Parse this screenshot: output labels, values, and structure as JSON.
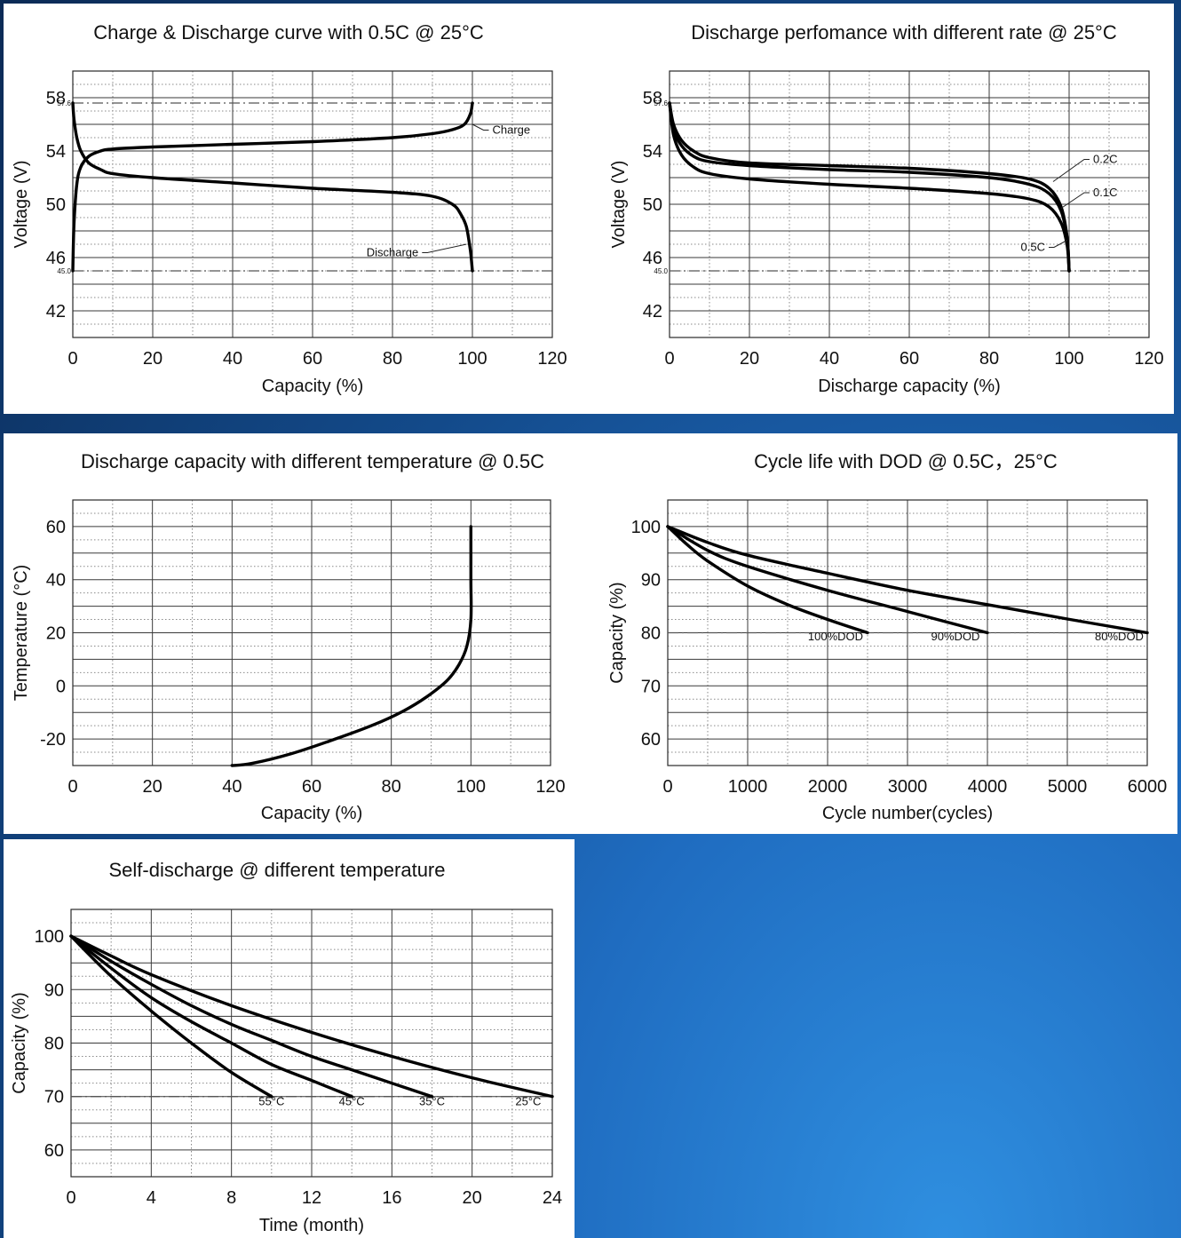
{
  "chart_data": [
    {
      "type": "line",
      "title": "Charge & Discharge curve with 0.5C @ 25°C",
      "xlabel": "Capacity (%)",
      "ylabel": "Voltage (V)",
      "xlim": [
        0,
        120
      ],
      "ylim": [
        40,
        60
      ],
      "xticks": [
        "0",
        "20",
        "40",
        "60",
        "80",
        "100",
        "120"
      ],
      "yticks": [
        "58",
        "54",
        "50",
        "46",
        "42"
      ],
      "grid": true,
      "reference_lines": [
        {
          "y": 57.6,
          "label": "57.6"
        },
        {
          "y": 45.0,
          "label": "45.0"
        }
      ],
      "series": [
        {
          "name": "Charge",
          "x": [
            0,
            0.3,
            1,
            2,
            4,
            7,
            10,
            20,
            40,
            60,
            80,
            90,
            95,
            98,
            99.5,
            100
          ],
          "y": [
            45.0,
            48.5,
            51.5,
            52.8,
            53.6,
            54.0,
            54.15,
            54.3,
            54.5,
            54.7,
            55.0,
            55.3,
            55.6,
            56.0,
            56.8,
            57.6
          ]
        },
        {
          "name": "Discharge",
          "x": [
            0,
            0.3,
            1,
            2,
            4,
            7,
            10,
            20,
            40,
            60,
            80,
            90,
            95,
            97,
            98.5,
            99.5,
            100
          ],
          "y": [
            57.6,
            56.4,
            55.0,
            54.0,
            53.1,
            52.6,
            52.3,
            52.0,
            51.6,
            51.2,
            50.9,
            50.6,
            50.0,
            49.3,
            48.3,
            46.5,
            45.0
          ]
        }
      ]
    },
    {
      "type": "line",
      "title": "Discharge perfomance with different rate @ 25°C",
      "xlabel": "Discharge capacity (%)",
      "ylabel": "Voltage (V)",
      "xlim": [
        0,
        120
      ],
      "ylim": [
        40,
        60
      ],
      "xticks": [
        "0",
        "20",
        "40",
        "60",
        "80",
        "100",
        "120"
      ],
      "yticks": [
        "58",
        "54",
        "50",
        "46",
        "42"
      ],
      "grid": true,
      "reference_lines": [
        {
          "y": 57.6,
          "label": "57.6"
        },
        {
          "y": 45.0,
          "label": "45.0"
        }
      ],
      "series": [
        {
          "name": "0.2C",
          "x": [
            0,
            1,
            3,
            6,
            10,
            20,
            40,
            60,
            80,
            90,
            95,
            98,
            99.5,
            100
          ],
          "y": [
            57.6,
            56.0,
            54.8,
            54.0,
            53.5,
            53.1,
            52.9,
            52.7,
            52.3,
            51.9,
            51.2,
            49.8,
            47.5,
            45.0
          ]
        },
        {
          "name": "0.1C",
          "x": [
            0,
            1,
            3,
            6,
            10,
            20,
            40,
            60,
            80,
            90,
            95,
            98,
            99.5,
            100
          ],
          "y": [
            57.6,
            55.6,
            54.4,
            53.6,
            53.2,
            52.9,
            52.6,
            52.4,
            52.0,
            51.5,
            50.8,
            49.5,
            47.4,
            45.0
          ]
        },
        {
          "name": "0.5C",
          "x": [
            0,
            1,
            3,
            6,
            10,
            20,
            40,
            60,
            80,
            90,
            95,
            98,
            99.5,
            100
          ],
          "y": [
            57.6,
            55.2,
            53.7,
            52.8,
            52.3,
            51.9,
            51.5,
            51.2,
            50.8,
            50.4,
            49.8,
            48.6,
            46.9,
            45.0
          ]
        }
      ],
      "labels": [
        "0.2C",
        "0.1C",
        "0.5C"
      ]
    },
    {
      "type": "line",
      "title": "Discharge capacity with different temperature @ 0.5C",
      "xlabel": "Capacity (%)",
      "ylabel": "Temperature (°C)",
      "xlim": [
        0,
        120
      ],
      "ylim": [
        -30,
        70
      ],
      "xticks": [
        "0",
        "20",
        "40",
        "60",
        "80",
        "100",
        "120"
      ],
      "yticks": [
        "60",
        "40",
        "20",
        "0",
        "-20"
      ],
      "grid": true,
      "series": [
        {
          "name": "",
          "x": [
            40,
            45,
            55,
            65,
            75,
            83,
            89,
            94,
            97,
            99,
            100,
            100,
            100
          ],
          "y": [
            -30,
            -29.2,
            -25.5,
            -20.5,
            -15,
            -9.5,
            -4,
            2,
            8,
            15,
            25,
            40,
            60
          ]
        }
      ]
    },
    {
      "type": "line",
      "title": "Cycle life with DOD @ 0.5C，25°C",
      "xlabel": "Cycle number(cycles)",
      "ylabel": "Capacity (%)",
      "xlim": [
        0,
        6000
      ],
      "ylim": [
        55,
        105
      ],
      "xticks": [
        "0",
        "1000",
        "2000",
        "3000",
        "4000",
        "5000",
        "6000"
      ],
      "yticks": [
        "100",
        "90",
        "80",
        "70",
        "60"
      ],
      "grid": true,
      "reference_lines": [
        {
          "y": 80,
          "label": ""
        }
      ],
      "series": [
        {
          "name": "100%DOD",
          "x": [
            0,
            250,
            500,
            1000,
            1500,
            2000,
            2500
          ],
          "y": [
            100,
            96.5,
            93.5,
            88.8,
            85.3,
            82.5,
            80
          ]
        },
        {
          "name": "90%DOD",
          "x": [
            0,
            500,
            1000,
            2000,
            3000,
            4000
          ],
          "y": [
            100,
            95.5,
            92.5,
            88.0,
            84.0,
            80
          ]
        },
        {
          "name": "80%DOD",
          "x": [
            0,
            500,
            1000,
            2000,
            3000,
            4000,
            5000,
            6000
          ],
          "y": [
            100,
            97.0,
            94.6,
            91.2,
            88.0,
            85.3,
            82.6,
            80
          ]
        }
      ]
    },
    {
      "type": "line",
      "title": "Self-discharge @ different temperature",
      "xlabel": "Time (month)",
      "ylabel": "Capacity (%)",
      "xlim": [
        0,
        24
      ],
      "ylim": [
        55,
        105
      ],
      "xticks": [
        "0",
        "4",
        "8",
        "12",
        "16",
        "20",
        "24"
      ],
      "yticks": [
        "100",
        "90",
        "80",
        "70",
        "60"
      ],
      "grid": true,
      "reference_lines": [
        {
          "y": 70,
          "label": ""
        }
      ],
      "series": [
        {
          "name": "55°C",
          "x": [
            0,
            2,
            4,
            6,
            8,
            10
          ],
          "y": [
            100,
            92.5,
            86.0,
            80.0,
            74.5,
            70
          ]
        },
        {
          "name": "45°C",
          "x": [
            0,
            2,
            4,
            6,
            8,
            10,
            12,
            14
          ],
          "y": [
            100,
            94.0,
            88.5,
            84.0,
            80.0,
            76.0,
            73.0,
            70
          ]
        },
        {
          "name": "35°C",
          "x": [
            0,
            2,
            4,
            6,
            8,
            10,
            12,
            14,
            16,
            18
          ],
          "y": [
            100,
            95.3,
            91.0,
            87.0,
            83.5,
            80.5,
            77.5,
            75.0,
            72.5,
            70
          ]
        },
        {
          "name": "25°C",
          "x": [
            0,
            2,
            4,
            8,
            12,
            16,
            20,
            24
          ],
          "y": [
            100,
            96.3,
            92.8,
            87.0,
            82.0,
            77.5,
            73.5,
            70
          ]
        }
      ]
    }
  ]
}
